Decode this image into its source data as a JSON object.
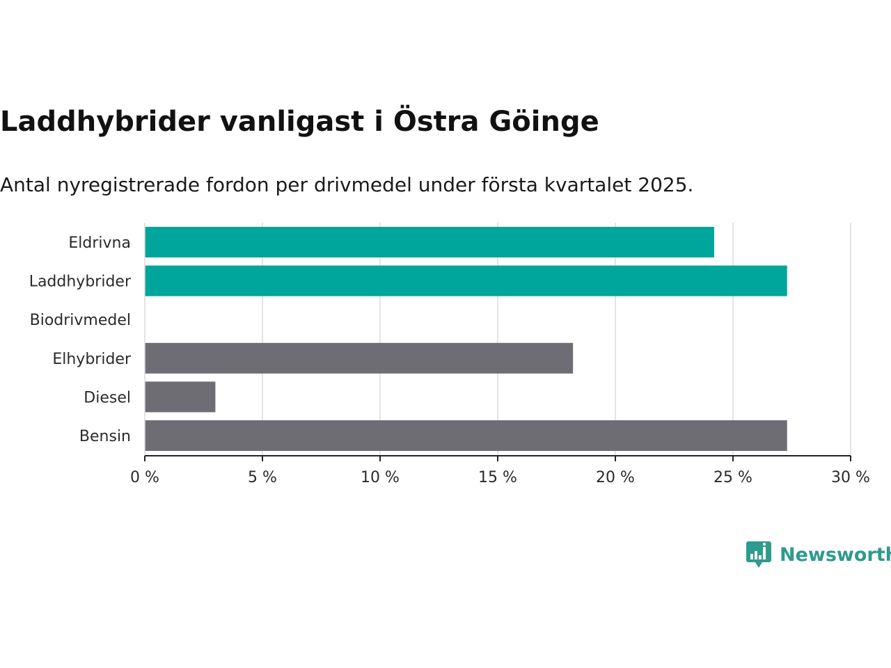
{
  "header": {
    "title": "Laddhybrider vanligast i Östra Göinge",
    "subtitle": "Antal nyregistrerade fordon per drivmedel under första kvartalet 2025."
  },
  "colors": {
    "highlight": "#00a59b",
    "default": "#6e6d73",
    "grid": "#dcdcdc",
    "axis": "#222222"
  },
  "chart_data": {
    "type": "bar",
    "orientation": "horizontal",
    "categories": [
      "Eldrivna",
      "Laddhybrider",
      "Biodrivmedel",
      "Elhybrider",
      "Diesel",
      "Bensin"
    ],
    "values": [
      24.2,
      27.3,
      0,
      18.2,
      3.0,
      27.3
    ],
    "highlighted": [
      true,
      true,
      false,
      false,
      false,
      false
    ],
    "xlim": [
      0,
      30
    ],
    "xticks": [
      0,
      5,
      10,
      15,
      20,
      25,
      30
    ],
    "xtick_labels": [
      "0 %",
      "5 %",
      "10 %",
      "15 %",
      "20 %",
      "25 %",
      "30 %"
    ],
    "grid": true
  },
  "brand": {
    "name": "Newsworthy",
    "icon": "newsworthy-logo-icon"
  }
}
